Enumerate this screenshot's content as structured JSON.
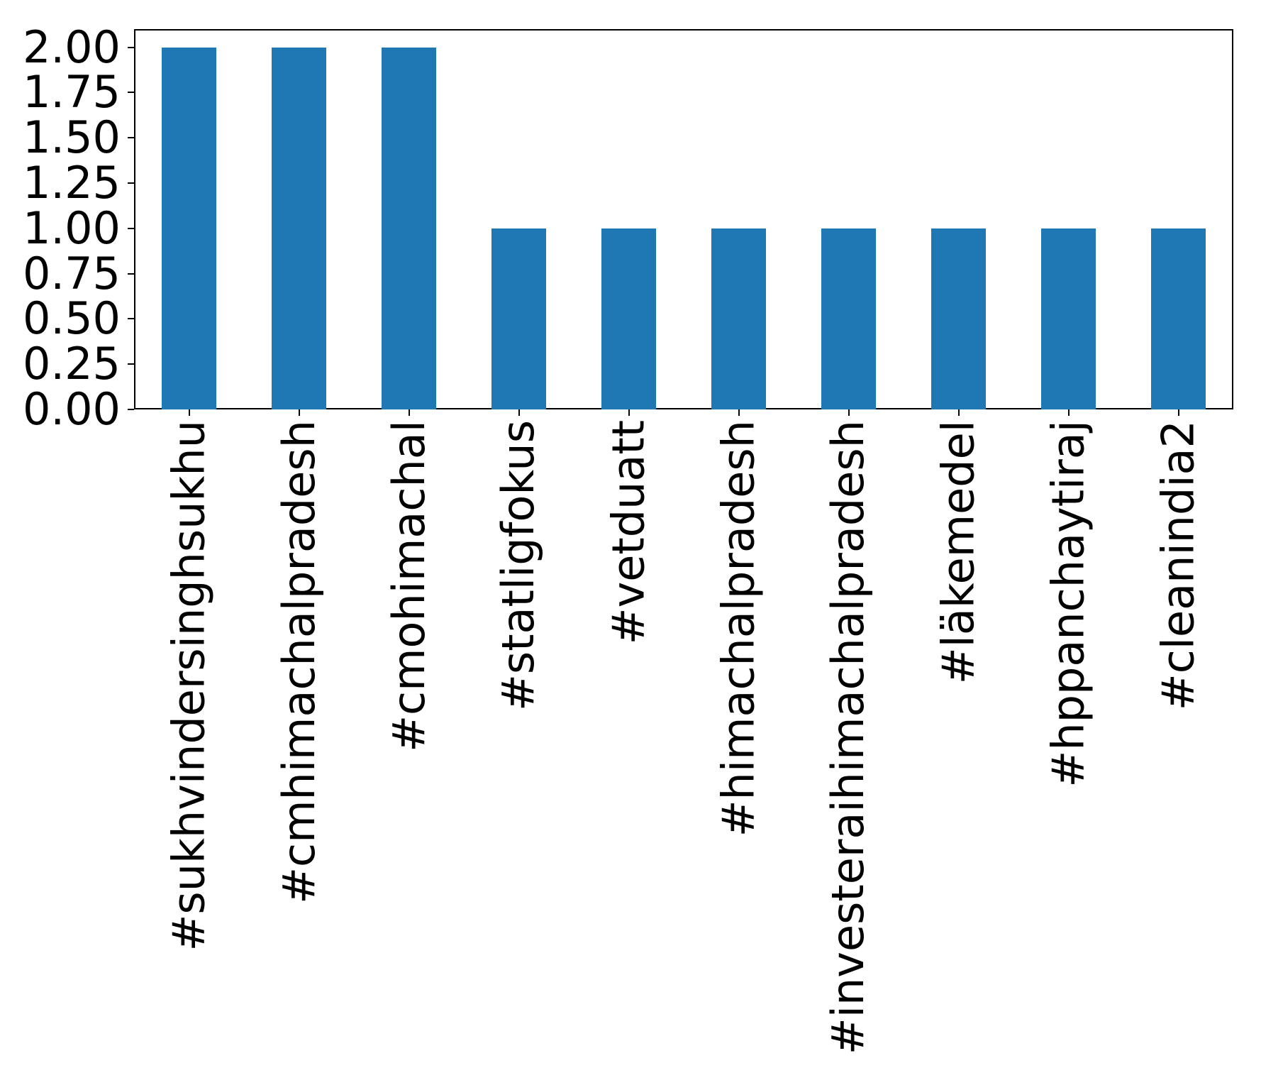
{
  "figure": {
    "background": "#ffffff"
  },
  "chart_data": {
    "type": "bar",
    "title": "",
    "xlabel": "",
    "ylabel": "",
    "categories": [
      "#sukhvindersinghsukhu",
      "#cmhimachalpradesh",
      "#cmohimachal",
      "#statligfokus",
      "#vetduatt",
      "#himachalpradesh",
      "#investeraihimachalpradesh",
      "#läkemedel",
      "#hppanchaytiraj",
      "#cleanindia2"
    ],
    "values": [
      2,
      2,
      2,
      1,
      1,
      1,
      1,
      1,
      1,
      1
    ],
    "yticks": [
      "0.00",
      "0.25",
      "0.50",
      "0.75",
      "1.00",
      "1.25",
      "1.50",
      "1.75",
      "2.00"
    ],
    "ylim": [
      0,
      2.1
    ],
    "bar_color": "#1f77b4",
    "axis_color": "#000000",
    "grid": false,
    "legend": "none",
    "x_tick_rotation": 90,
    "bar_width_fraction": 0.5
  }
}
